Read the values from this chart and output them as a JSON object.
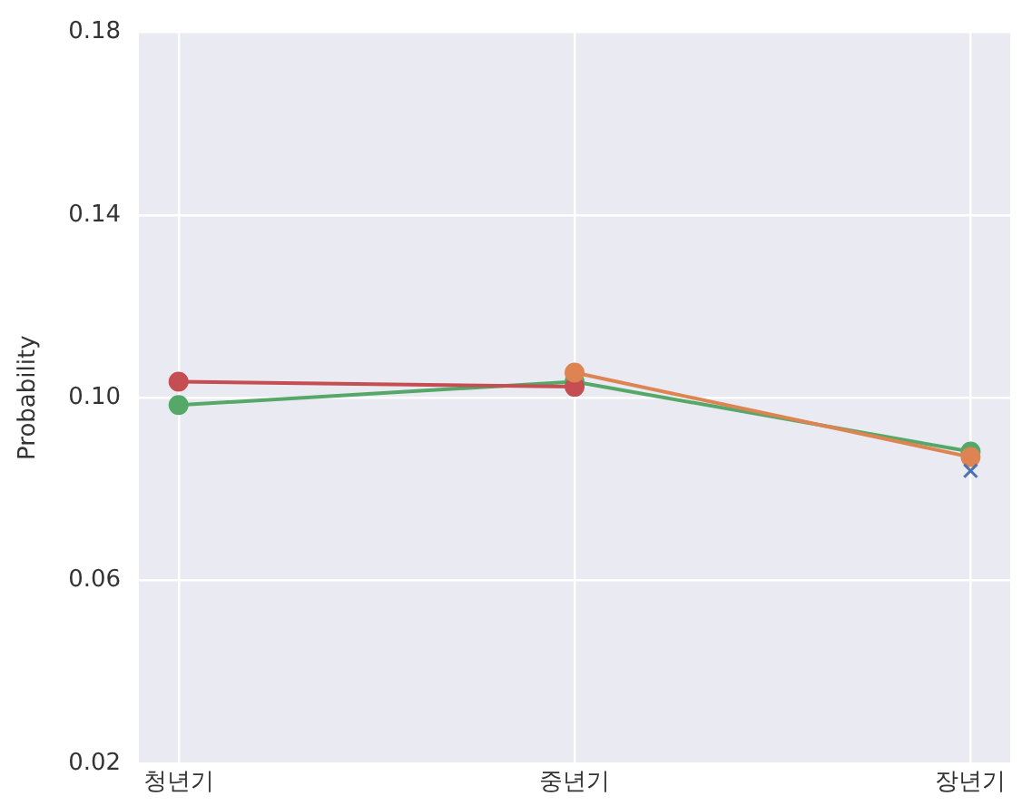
{
  "chart_data": {
    "type": "line",
    "ylabel": "Probability",
    "categories": [
      "청년기",
      "중년기",
      "장년기"
    ],
    "series": [
      {
        "color": "#4c72b0",
        "values": [
          null,
          null,
          0.084
        ],
        "marker": "cross"
      },
      {
        "color": "#dd8452",
        "values": [
          null,
          0.1055,
          0.087
        ],
        "marker": "circle"
      },
      {
        "color": "#c44e52",
        "values": [
          0.1035,
          0.1024,
          null
        ],
        "marker": "circle"
      },
      {
        "color": "#55a868",
        "values": [
          0.0984,
          0.1035,
          0.0882
        ],
        "marker": "circle"
      }
    ],
    "ylim": [
      0.02,
      0.18
    ],
    "yticks": [
      {
        "value": 0.02,
        "label": "0.02"
      },
      {
        "value": 0.06,
        "label": "0.06"
      },
      {
        "value": 0.1,
        "label": "0.10"
      },
      {
        "value": 0.14,
        "label": "0.14"
      },
      {
        "value": 0.18,
        "label": "0.18"
      }
    ],
    "grid": true,
    "legend": false
  }
}
